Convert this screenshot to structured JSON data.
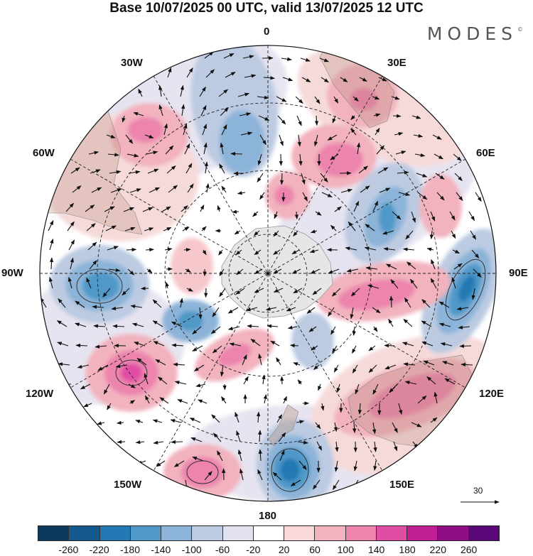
{
  "title": "Base 10/07/2025 00 UTC, valid 13/07/2025 12 UTC",
  "brand": "MODES",
  "brand_mark": "©",
  "longitude_labels": {
    "top": "0",
    "bottom": "180",
    "left": "90W",
    "right": "90E",
    "upper_left_outer": "30W",
    "upper_left_inner": "60W",
    "upper_right_outer": "30E",
    "upper_right_inner": "60E",
    "lower_left_inner": "120W",
    "lower_left_outer": "150W",
    "lower_right_inner": "120E",
    "lower_right_outer": "150E"
  },
  "wind_reference": "30",
  "colorbar": {
    "ticks": [
      "-260",
      "-220",
      "-180",
      "-140",
      "-100",
      "-60",
      "-20",
      "20",
      "60",
      "100",
      "140",
      "180",
      "220",
      "260"
    ],
    "colors": [
      "#0d3a5c",
      "#14588c",
      "#2379b3",
      "#4f98c8",
      "#8cb4d8",
      "#bccbe2",
      "#e2e2ee",
      "#ffffff",
      "#f8d8d8",
      "#f2b2be",
      "#ec84ae",
      "#e04ea4",
      "#c21e94",
      "#8e0e86",
      "#5a0878"
    ],
    "outer_colors": [
      "#0d3a5c",
      "#5a0878"
    ]
  }
}
